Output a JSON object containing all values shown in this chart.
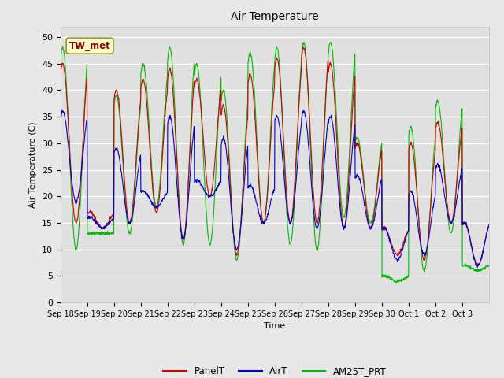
{
  "title": "Air Temperature",
  "ylabel": "Air Temperature (C)",
  "xlabel": "Time",
  "annotation": "TW_met",
  "ylim": [
    0,
    52
  ],
  "yticks": [
    0,
    5,
    10,
    15,
    20,
    25,
    30,
    35,
    40,
    45,
    50
  ],
  "fig_bg_color": "#e8e8e8",
  "plot_bg_color": "#e0e0e0",
  "grid_color": "#ffffff",
  "legend_labels": [
    "PanelT",
    "AirT",
    "AM25T_PRT"
  ],
  "line_colors": {
    "PanelT": "#cc0000",
    "AirT": "#0000cc",
    "AM25T_PRT": "#00bb00"
  },
  "xtick_labels": [
    "Sep 18",
    "Sep 19",
    "Sep 20",
    "Sep 21",
    "Sep 22",
    "Sep 23",
    "Sep 24",
    "Sep 25",
    "Sep 26",
    "Sep 27",
    "Sep 28",
    "Sep 29",
    "Sep 30",
    "Oct 1",
    "Oct 2",
    "Oct 3"
  ],
  "n_days": 16
}
